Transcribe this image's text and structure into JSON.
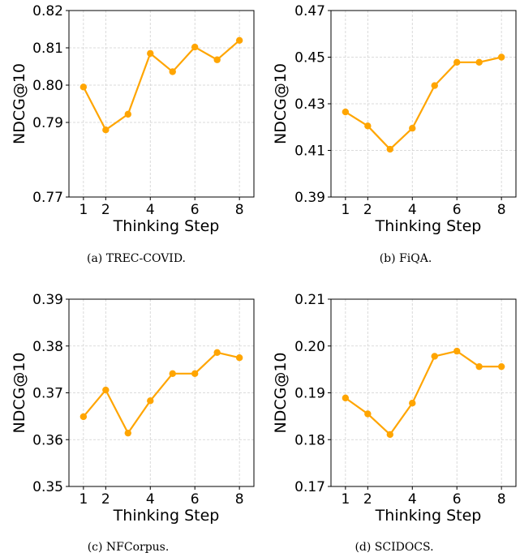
{
  "accent_color": "#FFA500",
  "chart_data": [
    {
      "type": "line",
      "caption": "(a)  TREC-COVID.",
      "xlabel": "Thinking Step",
      "ylabel": "NDCG@10",
      "x": [
        1,
        2,
        3,
        4,
        5,
        6,
        7,
        8
      ],
      "xticks": [
        "1",
        "2",
        "4",
        "6",
        "8"
      ],
      "xtick_values": [
        1,
        2,
        4,
        6,
        8
      ],
      "xlim": [
        0.35,
        8.65
      ],
      "ylim": [
        0.77,
        0.82
      ],
      "yticks": [
        "0.77",
        "0.79",
        "0.80",
        "0.81",
        "0.82"
      ],
      "ytick_values": [
        0.77,
        0.79,
        0.8,
        0.81,
        0.82
      ],
      "grid": true,
      "series": [
        {
          "values": [
            0.7995,
            0.788,
            0.7922,
            0.8085,
            0.8036,
            0.8102,
            0.8068,
            0.812
          ]
        }
      ]
    },
    {
      "type": "line",
      "caption": "(b)  FiQA.",
      "xlabel": "Thinking Step",
      "ylabel": "NDCG@10",
      "x": [
        1,
        2,
        3,
        4,
        5,
        6,
        7,
        8
      ],
      "xticks": [
        "1",
        "2",
        "4",
        "6",
        "8"
      ],
      "xtick_values": [
        1,
        2,
        4,
        6,
        8
      ],
      "xlim": [
        0.35,
        8.65
      ],
      "ylim": [
        0.39,
        0.47
      ],
      "yticks": [
        "0.39",
        "0.41",
        "0.43",
        "0.45",
        "0.47"
      ],
      "ytick_values": [
        0.39,
        0.41,
        0.43,
        0.45,
        0.47
      ],
      "grid": true,
      "series": [
        {
          "values": [
            0.4265,
            0.4205,
            0.4105,
            0.4195,
            0.4378,
            0.4478,
            0.4478,
            0.45
          ]
        }
      ]
    },
    {
      "type": "line",
      "caption": "(c)  NFCorpus.",
      "xlabel": "Thinking Step",
      "ylabel": "NDCG@10",
      "x": [
        1,
        2,
        3,
        4,
        5,
        6,
        7,
        8
      ],
      "xticks": [
        "1",
        "2",
        "4",
        "6",
        "8"
      ],
      "xtick_values": [
        1,
        2,
        4,
        6,
        8
      ],
      "xlim": [
        0.35,
        8.65
      ],
      "ylim": [
        0.35,
        0.39
      ],
      "yticks": [
        "0.35",
        "0.36",
        "0.37",
        "0.38",
        "0.39"
      ],
      "ytick_values": [
        0.35,
        0.36,
        0.37,
        0.38,
        0.39
      ],
      "grid": true,
      "series": [
        {
          "values": [
            0.3649,
            0.3706,
            0.3614,
            0.3683,
            0.3741,
            0.3741,
            0.3786,
            0.3775
          ]
        }
      ]
    },
    {
      "type": "line",
      "caption": "(d)  SCIDOCS.",
      "xlabel": "Thinking Step",
      "ylabel": "NDCG@10",
      "x": [
        1,
        2,
        3,
        4,
        5,
        6,
        7,
        8
      ],
      "xticks": [
        "1",
        "2",
        "4",
        "6",
        "8"
      ],
      "xtick_values": [
        1,
        2,
        4,
        6,
        8
      ],
      "xlim": [
        0.35,
        8.65
      ],
      "ylim": [
        0.17,
        0.21
      ],
      "yticks": [
        "0.17",
        "0.18",
        "0.19",
        "0.20",
        "0.21"
      ],
      "ytick_values": [
        0.17,
        0.18,
        0.19,
        0.2,
        0.21
      ],
      "grid": true,
      "series": [
        {
          "values": [
            0.1889,
            0.1855,
            0.1811,
            0.1878,
            0.1978,
            0.1989,
            0.1956,
            0.1956
          ]
        }
      ]
    }
  ]
}
